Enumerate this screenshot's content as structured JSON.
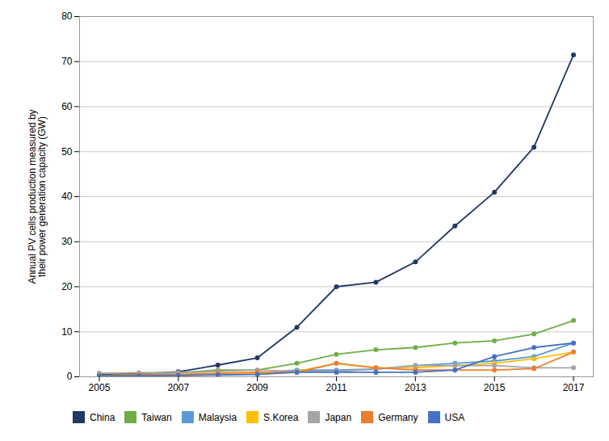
{
  "chart_data": {
    "type": "line",
    "x": [
      2005,
      2006,
      2007,
      2008,
      2009,
      2010,
      2011,
      2012,
      2013,
      2014,
      2015,
      2016,
      2017
    ],
    "series": [
      {
        "name": "China",
        "color": "#1F3864",
        "marker": "circle",
        "values": [
          0.5,
          0.7,
          1.1,
          2.6,
          4.2,
          11.0,
          20.0,
          21.0,
          25.5,
          33.5,
          41.0,
          51.0,
          71.5
        ]
      },
      {
        "name": "Taiwan",
        "color": "#70AD47",
        "marker": "circle",
        "values": [
          0.3,
          0.5,
          0.9,
          1.5,
          1.5,
          3.0,
          5.0,
          6.0,
          6.5,
          7.5,
          8.0,
          9.5,
          12.5
        ]
      },
      {
        "name": "Malaysia",
        "color": "#5B9BD5",
        "marker": "circle",
        "values": [
          0.1,
          0.2,
          0.3,
          0.5,
          0.8,
          1.5,
          1.5,
          1.7,
          2.5,
          3.0,
          3.5,
          4.5,
          7.5
        ]
      },
      {
        "name": "S.Korea",
        "color": "#FFC000",
        "marker": "circle",
        "values": [
          0.1,
          0.1,
          0.2,
          0.5,
          0.8,
          1.2,
          3.0,
          2.0,
          2.0,
          2.5,
          3.0,
          4.0,
          5.5
        ]
      },
      {
        "name": "Japan",
        "color": "#A5A5A5",
        "marker": "circle",
        "values": [
          0.8,
          0.9,
          0.9,
          1.2,
          1.5,
          1.2,
          1.2,
          1.7,
          2.5,
          2.5,
          2.5,
          2.0,
          2.0
        ]
      },
      {
        "name": "Germany",
        "color": "#ED7D31",
        "marker": "circle",
        "values": [
          0.3,
          0.4,
          0.5,
          0.8,
          1.0,
          1.0,
          3.0,
          2.0,
          1.5,
          1.5,
          1.5,
          1.8,
          5.5
        ]
      },
      {
        "name": "USA",
        "color": "#4472C4",
        "marker": "circle",
        "values": [
          0.2,
          0.2,
          0.3,
          0.4,
          0.5,
          1.0,
          1.0,
          1.0,
          1.0,
          1.5,
          4.5,
          6.5,
          7.5
        ]
      }
    ],
    "ylabel": "Annual PV cells production measured by\ntheir power generation capacity (GW)",
    "xlim": [
      2004.5,
      2017.5
    ],
    "xticks": [
      2005,
      2007,
      2009,
      2011,
      2013,
      2015,
      2017
    ],
    "ylim": [
      0,
      80
    ],
    "yticks": [
      0,
      10,
      20,
      30,
      40,
      50,
      60,
      70,
      80
    ],
    "grid": "y",
    "legend": "bottom"
  }
}
